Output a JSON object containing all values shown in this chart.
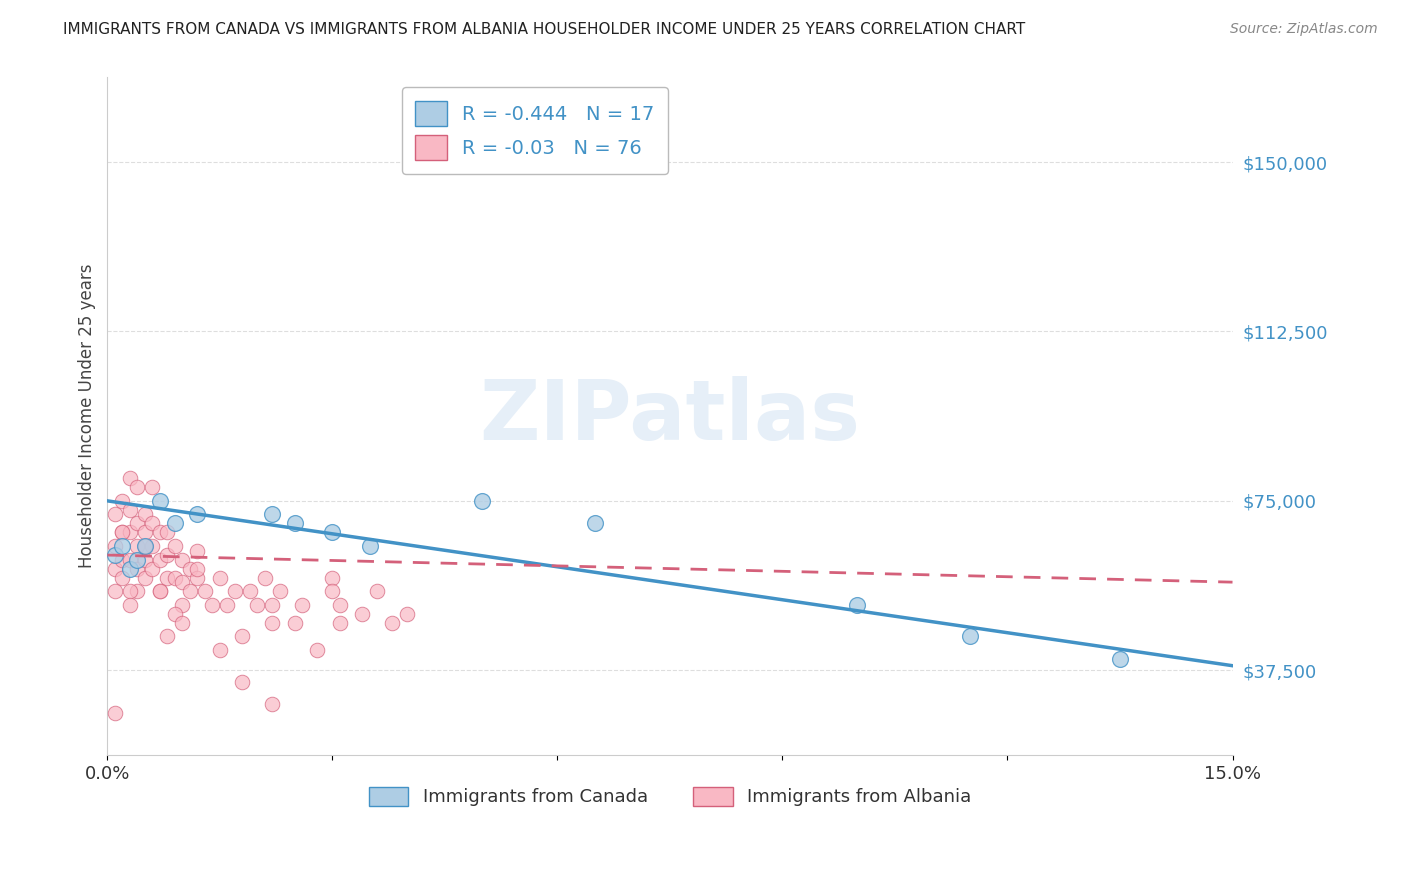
{
  "title": "IMMIGRANTS FROM CANADA VS IMMIGRANTS FROM ALBANIA HOUSEHOLDER INCOME UNDER 25 YEARS CORRELATION CHART",
  "source": "Source: ZipAtlas.com",
  "ylabel": "Householder Income Under 25 years",
  "xlim": [
    0.0,
    0.15
  ],
  "ylim": [
    18750,
    168750
  ],
  "yticks": [
    37500,
    75000,
    112500,
    150000
  ],
  "ytick_labels": [
    "$37,500",
    "$75,000",
    "$112,500",
    "$150,000"
  ],
  "xticks": [
    0.0,
    0.03,
    0.06,
    0.09,
    0.12,
    0.15
  ],
  "xtick_labels": [
    "0.0%",
    "",
    "",
    "",
    "",
    "15.0%"
  ],
  "canada_R": -0.444,
  "canada_N": 17,
  "albania_R": -0.03,
  "albania_N": 76,
  "canada_marker_color": "#aecde4",
  "albania_marker_color": "#f9b8c4",
  "canada_edge_color": "#4292c6",
  "albania_edge_color": "#d4607a",
  "canada_line_color": "#4292c6",
  "albania_line_color": "#d4607a",
  "background_color": "#ffffff",
  "watermark": "ZIPatlas",
  "grid_color": "#d0d0d0",
  "title_color": "#222222",
  "source_color": "#888888",
  "ylabel_color": "#444444",
  "canada_x": [
    0.001,
    0.002,
    0.003,
    0.004,
    0.005,
    0.007,
    0.009,
    0.012,
    0.022,
    0.025,
    0.03,
    0.035,
    0.05,
    0.065,
    0.1,
    0.115,
    0.135
  ],
  "canada_y": [
    63000,
    65000,
    60000,
    62000,
    65000,
    75000,
    70000,
    72000,
    72000,
    70000,
    68000,
    65000,
    75000,
    70000,
    52000,
    45000,
    40000
  ],
  "albania_x": [
    0.001,
    0.001,
    0.001,
    0.002,
    0.002,
    0.002,
    0.003,
    0.003,
    0.003,
    0.003,
    0.004,
    0.004,
    0.004,
    0.004,
    0.004,
    0.005,
    0.005,
    0.005,
    0.005,
    0.006,
    0.006,
    0.006,
    0.007,
    0.007,
    0.007,
    0.008,
    0.008,
    0.008,
    0.009,
    0.009,
    0.01,
    0.01,
    0.01,
    0.011,
    0.011,
    0.012,
    0.012,
    0.013,
    0.014,
    0.015,
    0.016,
    0.017,
    0.018,
    0.019,
    0.02,
    0.021,
    0.022,
    0.022,
    0.023,
    0.025,
    0.026,
    0.028,
    0.03,
    0.031,
    0.031,
    0.034,
    0.036,
    0.038,
    0.04,
    0.001,
    0.001,
    0.002,
    0.002,
    0.003,
    0.003,
    0.005,
    0.006,
    0.007,
    0.008,
    0.009,
    0.01,
    0.012,
    0.015,
    0.018,
    0.022,
    0.03
  ],
  "albania_y": [
    72000,
    65000,
    60000,
    68000,
    75000,
    62000,
    80000,
    73000,
    68000,
    62000,
    78000,
    70000,
    65000,
    60000,
    55000,
    72000,
    68000,
    62000,
    58000,
    70000,
    65000,
    60000,
    68000,
    62000,
    55000,
    68000,
    63000,
    58000,
    65000,
    58000,
    62000,
    57000,
    52000,
    60000,
    55000,
    64000,
    58000,
    55000,
    52000,
    58000,
    52000,
    55000,
    45000,
    55000,
    52000,
    58000,
    52000,
    48000,
    55000,
    48000,
    52000,
    42000,
    58000,
    52000,
    48000,
    50000,
    55000,
    48000,
    50000,
    55000,
    28000,
    68000,
    58000,
    55000,
    52000,
    65000,
    78000,
    55000,
    45000,
    50000,
    48000,
    60000,
    42000,
    35000,
    30000,
    55000
  ],
  "canada_trend_x0": 0.0,
  "canada_trend_y0": 75000,
  "canada_trend_x1": 0.15,
  "canada_trend_y1": 38500,
  "albania_trend_x0": 0.0,
  "albania_trend_y0": 63000,
  "albania_trend_x1": 0.15,
  "albania_trend_y1": 57000
}
